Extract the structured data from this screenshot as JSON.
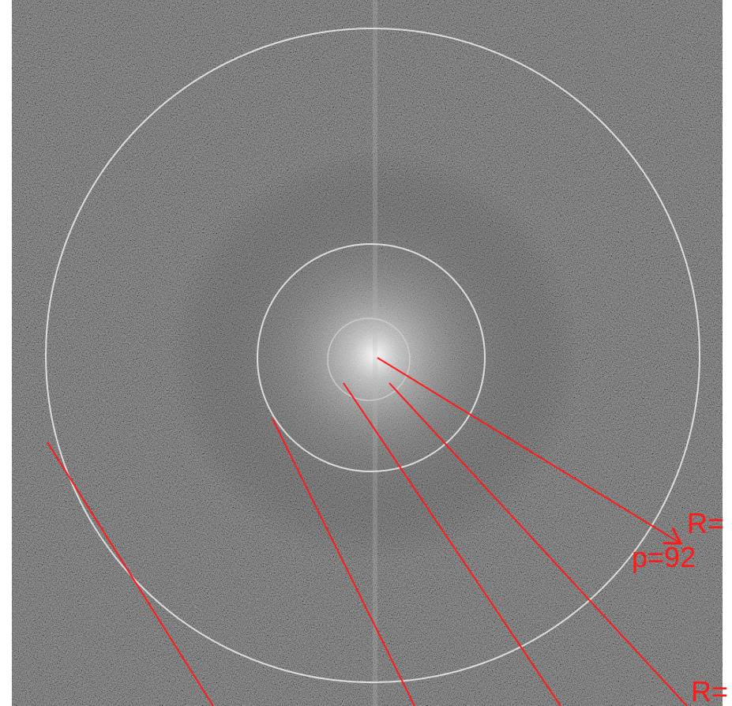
{
  "annotations": {
    "label_1": "R=",
    "label_2": "p=92",
    "label_3": "R="
  }
}
